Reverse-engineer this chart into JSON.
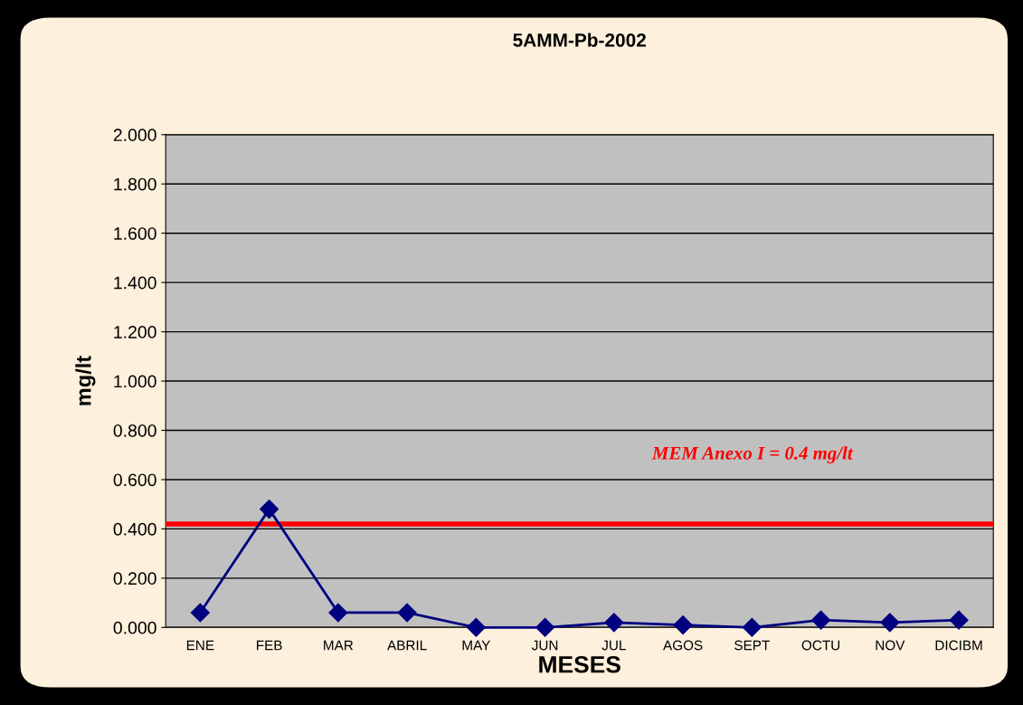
{
  "chart_data": {
    "type": "line",
    "title": "5AMM-Pb-2002",
    "xlabel": "MESES",
    "ylabel": "mg/lt",
    "categories": [
      "ENE",
      "FEB",
      "MAR",
      "ABRIL",
      "MAY",
      "JUN",
      "JUL",
      "AGOS",
      "SEPT",
      "OCTU",
      "NOV",
      "DICIBM"
    ],
    "series": [
      {
        "color": "#000080",
        "values": [
          0.06,
          0.48,
          0.06,
          0.06,
          0.0,
          0.0,
          0.02,
          0.01,
          0.0,
          0.03,
          0.02,
          0.03
        ]
      }
    ],
    "ylim": [
      0,
      2
    ],
    "yticks": [
      {
        "value": 0,
        "label": "0.000"
      },
      {
        "value": 0.2,
        "label": "0.200"
      },
      {
        "value": 0.4,
        "label": "0.400"
      },
      {
        "value": 0.6,
        "label": "0.600"
      },
      {
        "value": 0.8,
        "label": "0.800"
      },
      {
        "value": 1.0,
        "label": "1.000"
      },
      {
        "value": 1.2,
        "label": "1.200"
      },
      {
        "value": 1.4,
        "label": "1.400"
      },
      {
        "value": 1.6,
        "label": "1.600"
      },
      {
        "value": 1.8,
        "label": "1.800"
      },
      {
        "value": 2.0,
        "label": "2.000"
      }
    ],
    "grid": "y",
    "legend": false,
    "marker": "diamond",
    "line_style": "solid",
    "ref_lines": [
      {
        "axis": "y",
        "value": 0.42,
        "color": "#ff0000",
        "label": "MEM Anexo I = 0.4 mg/lt"
      }
    ]
  }
}
